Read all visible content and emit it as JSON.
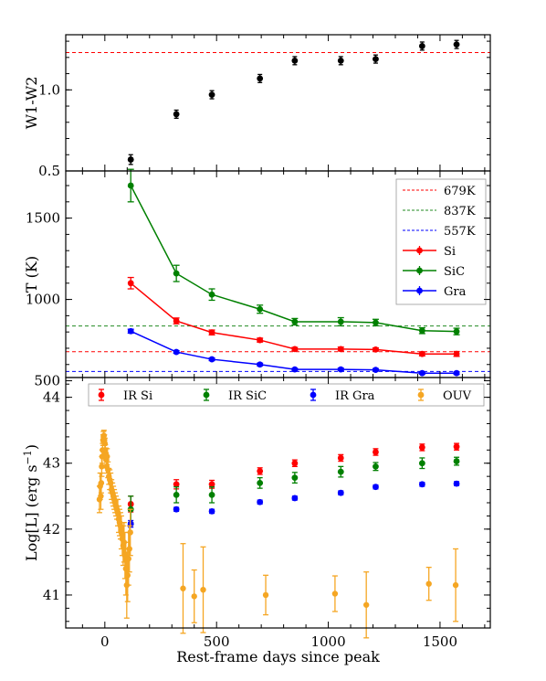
{
  "chart_data": [
    {
      "type": "scatter",
      "ylabel": "W1-W2",
      "yticks": [
        "0.5",
        "1.0"
      ],
      "ylim": [
        0.5,
        1.34
      ],
      "xlim": [
        -175,
        1725
      ],
      "reference_lines": [
        {
          "y": 1.23,
          "color": "#ff0000"
        }
      ],
      "series": [
        {
          "color": "#000000",
          "points": [
            {
              "x": 116,
              "y": 0.57,
              "err": 0.03
            },
            {
              "x": 320,
              "y": 0.85,
              "err": 0.025
            },
            {
              "x": 479,
              "y": 0.97,
              "err": 0.025
            },
            {
              "x": 694,
              "y": 1.07,
              "err": 0.025
            },
            {
              "x": 850,
              "y": 1.18,
              "err": 0.025
            },
            {
              "x": 1056,
              "y": 1.18,
              "err": 0.025
            },
            {
              "x": 1212,
              "y": 1.19,
              "err": 0.025
            },
            {
              "x": 1420,
              "y": 1.27,
              "err": 0.025
            },
            {
              "x": 1574,
              "y": 1.28,
              "err": 0.025
            }
          ]
        }
      ]
    },
    {
      "type": "line",
      "ylabel": "T (K)",
      "yticks": [
        "500",
        "1000",
        "1500"
      ],
      "ylim": [
        520,
        1790
      ],
      "xlim": [
        -175,
        1725
      ],
      "reference_lines": [
        {
          "y": 679,
          "label": "679K",
          "color": "#ff0000"
        },
        {
          "y": 837,
          "label": "837K",
          "color": "#228b22"
        },
        {
          "y": 557,
          "label": "557K",
          "color": "#0000ff"
        }
      ],
      "legend_position": "top-right",
      "series": [
        {
          "name": "Si",
          "color": "#ff0000",
          "x": [
            116,
            320,
            479,
            694,
            850,
            1056,
            1212,
            1420,
            1574
          ],
          "y": [
            1100,
            868,
            797,
            750,
            695,
            695,
            692,
            665,
            665
          ],
          "err": [
            35,
            18,
            15,
            12,
            10,
            12,
            10,
            12,
            15
          ]
        },
        {
          "name": "SiC",
          "color": "#008000",
          "x": [
            116,
            320,
            479,
            694,
            850,
            1056,
            1212,
            1420,
            1574
          ],
          "y": [
            1700,
            1160,
            1030,
            940,
            863,
            863,
            858,
            808,
            803
          ],
          "err": [
            100,
            50,
            35,
            25,
            20,
            25,
            20,
            18,
            20
          ]
        },
        {
          "name": "Gra",
          "color": "#0000ff",
          "x": [
            116,
            320,
            479,
            694,
            850,
            1056,
            1212,
            1420,
            1574
          ],
          "y": [
            805,
            677,
            632,
            600,
            570,
            570,
            567,
            547,
            547
          ],
          "err": [
            12,
            8,
            8,
            8,
            6,
            8,
            8,
            6,
            8
          ]
        }
      ]
    },
    {
      "type": "scatter",
      "ylabel": "Log[L] (erg s",
      "ylabel_sup": "−1",
      "ylabel_close": ")",
      "xlabel": "Rest-frame days since peak",
      "xticks": [
        "0",
        "500",
        "1000",
        "1500"
      ],
      "yticks": [
        "41",
        "42",
        "43",
        "44"
      ],
      "ylim": [
        40.5,
        44.3
      ],
      "xlim": [
        -175,
        1725
      ],
      "legend_position": "top",
      "series": [
        {
          "name": "IR Si",
          "color": "#ff0000",
          "x": [
            116,
            320,
            479,
            694,
            850,
            1056,
            1212,
            1420,
            1574
          ],
          "y": [
            42.38,
            42.68,
            42.68,
            42.88,
            43.0,
            43.08,
            43.17,
            43.24,
            43.25
          ],
          "err": [
            0.12,
            0.07,
            0.06,
            0.05,
            0.05,
            0.05,
            0.05,
            0.05,
            0.05
          ]
        },
        {
          "name": "IR SiC",
          "color": "#008000",
          "x": [
            116,
            320,
            479,
            694,
            850,
            1056,
            1212,
            1420,
            1574
          ],
          "y": [
            42.3,
            42.52,
            42.52,
            42.7,
            42.78,
            42.87,
            42.95,
            43.0,
            43.03
          ],
          "err": [
            0.2,
            0.12,
            0.12,
            0.08,
            0.08,
            0.08,
            0.06,
            0.08,
            0.06
          ]
        },
        {
          "name": "IR Gra",
          "color": "#0000ff",
          "x": [
            116,
            320,
            479,
            694,
            850,
            1056,
            1212,
            1420,
            1574
          ],
          "y": [
            42.08,
            42.3,
            42.27,
            42.41,
            42.47,
            42.55,
            42.64,
            42.68,
            42.69
          ],
          "err": [
            0.05,
            0.03,
            0.03,
            0.03,
            0.03,
            0.03,
            0.03,
            0.03,
            0.03
          ]
        },
        {
          "name": "OUV",
          "color": "#f5a623",
          "x": [
            -24,
            -21,
            -18,
            -16,
            -14,
            -12,
            -10,
            -8,
            -6,
            -4,
            -2,
            0,
            2,
            4,
            6,
            8,
            10,
            14,
            18,
            22,
            26,
            30,
            34,
            38,
            42,
            46,
            50,
            54,
            58,
            62,
            66,
            70,
            74,
            78,
            82,
            86,
            90,
            94,
            98,
            102,
            106,
            110,
            114,
            350,
            400,
            440,
            720,
            1030,
            1170,
            1450,
            1570
          ],
          "y": [
            42.45,
            42.65,
            42.5,
            42.7,
            42.95,
            43.1,
            43.2,
            43.35,
            43.4,
            43.42,
            43.35,
            43.3,
            43.2,
            43.15,
            43.05,
            42.95,
            43.1,
            42.9,
            42.8,
            42.75,
            42.7,
            42.6,
            42.55,
            42.5,
            42.45,
            42.4,
            42.35,
            42.3,
            42.25,
            42.15,
            42.1,
            42.05,
            41.95,
            41.85,
            41.75,
            41.8,
            41.6,
            41.4,
            41.15,
            41.3,
            41.55,
            41.7,
            41.95,
            41.1,
            40.98,
            41.08,
            41.0,
            41.02,
            40.85,
            41.17,
            41.15
          ],
          "err": [
            0.2,
            0.2,
            0.2,
            0.15,
            0.15,
            0.1,
            0.1,
            0.08,
            0.08,
            0.08,
            0.08,
            0.08,
            0.08,
            0.08,
            0.1,
            0.1,
            0.12,
            0.12,
            0.12,
            0.15,
            0.15,
            0.15,
            0.15,
            0.15,
            0.15,
            0.15,
            0.15,
            0.15,
            0.2,
            0.2,
            0.2,
            0.2,
            0.25,
            0.25,
            0.3,
            0.3,
            0.35,
            0.4,
            0.5,
            0.4,
            0.4,
            0.35,
            0.35,
            0.68,
            0.4,
            0.65,
            0.3,
            0.27,
            0.5,
            0.25,
            0.55
          ]
        }
      ]
    }
  ]
}
